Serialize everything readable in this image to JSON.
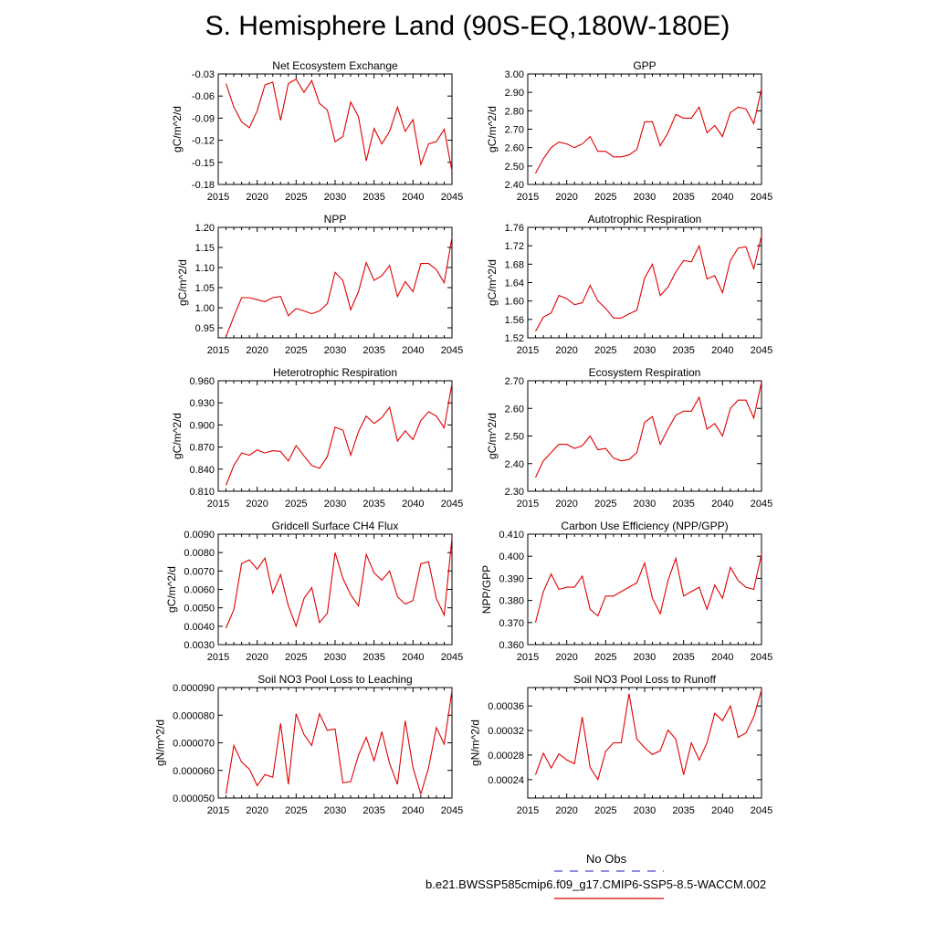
{
  "figure_title": "S. Hemisphere Land (90S-EQ,180W-180E)",
  "legend": {
    "obs_label": "No Obs",
    "obs_color": "#4a4ad0",
    "model_label": "b.e21.BWSSP585cmip6.f09_g17.CMIP6-SSP5-8.5-WACCM.002",
    "model_color": "#e00000"
  },
  "line_color": "#e00000",
  "chart_data": [
    {
      "type": "line",
      "title": "Net Ecosystem Exchange",
      "ylabel": "gC/m^2/d",
      "xlim": [
        2015,
        2045
      ],
      "ylim": [
        -0.18,
        -0.03
      ],
      "xticks": [
        "2015",
        "2020",
        "2025",
        "2030",
        "2035",
        "2040",
        "2045"
      ],
      "yticks": [
        "-0.18",
        "-0.15",
        "-0.12",
        "-0.09",
        "-0.06",
        "-0.03"
      ],
      "x": [
        2016,
        2017,
        2018,
        2019,
        2020,
        2021,
        2022,
        2023,
        2024,
        2025,
        2026,
        2027,
        2028,
        2029,
        2030,
        2031,
        2032,
        2033,
        2034,
        2035,
        2036,
        2037,
        2038,
        2039,
        2040,
        2041,
        2042,
        2043,
        2044,
        2045
      ],
      "values": [
        -0.043,
        -0.075,
        -0.095,
        -0.103,
        -0.08,
        -0.045,
        -0.041,
        -0.093,
        -0.043,
        -0.037,
        -0.055,
        -0.039,
        -0.07,
        -0.079,
        -0.122,
        -0.115,
        -0.068,
        -0.088,
        -0.148,
        -0.104,
        -0.125,
        -0.108,
        -0.075,
        -0.108,
        -0.092,
        -0.153,
        -0.125,
        -0.122,
        -0.105,
        -0.162
      ]
    },
    {
      "type": "line",
      "title": "GPP",
      "ylabel": "gC/m^2/d",
      "xlim": [
        2015,
        2045
      ],
      "ylim": [
        2.4,
        3.0
      ],
      "xticks": [
        "2015",
        "2020",
        "2025",
        "2030",
        "2035",
        "2040",
        "2045"
      ],
      "yticks": [
        "2.40",
        "2.50",
        "2.60",
        "2.70",
        "2.80",
        "2.90",
        "3.00"
      ],
      "x": [
        2016,
        2017,
        2018,
        2019,
        2020,
        2021,
        2022,
        2023,
        2024,
        2025,
        2026,
        2027,
        2028,
        2029,
        2030,
        2031,
        2032,
        2033,
        2034,
        2035,
        2036,
        2037,
        2038,
        2039,
        2040,
        2041,
        2042,
        2043,
        2044,
        2045
      ],
      "values": [
        2.46,
        2.54,
        2.6,
        2.63,
        2.62,
        2.6,
        2.62,
        2.66,
        2.58,
        2.58,
        2.55,
        2.55,
        2.56,
        2.59,
        2.74,
        2.74,
        2.61,
        2.68,
        2.78,
        2.76,
        2.76,
        2.82,
        2.68,
        2.72,
        2.66,
        2.79,
        2.82,
        2.81,
        2.73,
        2.92
      ]
    },
    {
      "type": "line",
      "title": "NPP",
      "ylabel": "gC/m^2/d",
      "xlim": [
        2015,
        2045
      ],
      "ylim": [
        0.925,
        1.2
      ],
      "xticks": [
        "2015",
        "2020",
        "2025",
        "2030",
        "2035",
        "2040",
        "2045"
      ],
      "yticks": [
        "0.95",
        "1.00",
        "1.05",
        "1.10",
        "1.15",
        "1.20"
      ],
      "x": [
        2016,
        2017,
        2018,
        2019,
        2020,
        2021,
        2022,
        2023,
        2024,
        2025,
        2026,
        2027,
        2028,
        2029,
        2030,
        2031,
        2032,
        2033,
        2034,
        2035,
        2036,
        2037,
        2038,
        2039,
        2040,
        2041,
        2042,
        2043,
        2044,
        2045
      ],
      "values": [
        0.928,
        0.978,
        1.025,
        1.025,
        1.02,
        1.015,
        1.025,
        1.028,
        0.98,
        0.998,
        0.992,
        0.985,
        0.992,
        1.01,
        1.088,
        1.068,
        0.995,
        1.04,
        1.112,
        1.068,
        1.08,
        1.105,
        1.028,
        1.065,
        1.04,
        1.11,
        1.11,
        1.095,
        1.062,
        1.175
      ]
    },
    {
      "type": "line",
      "title": "Autotrophic Respiration",
      "ylabel": "gC/m^2/d",
      "xlim": [
        2015,
        2045
      ],
      "ylim": [
        1.52,
        1.76
      ],
      "xticks": [
        "2015",
        "2020",
        "2025",
        "2030",
        "2035",
        "2040",
        "2045"
      ],
      "yticks": [
        "1.52",
        "1.56",
        "1.60",
        "1.64",
        "1.68",
        "1.72",
        "1.76"
      ],
      "x": [
        2016,
        2017,
        2018,
        2019,
        2020,
        2021,
        2022,
        2023,
        2024,
        2025,
        2026,
        2027,
        2028,
        2029,
        2030,
        2031,
        2032,
        2033,
        2034,
        2035,
        2036,
        2037,
        2038,
        2039,
        2040,
        2041,
        2042,
        2043,
        2044,
        2045
      ],
      "values": [
        1.534,
        1.565,
        1.574,
        1.612,
        1.605,
        1.592,
        1.596,
        1.634,
        1.6,
        1.584,
        1.563,
        1.563,
        1.572,
        1.58,
        1.65,
        1.68,
        1.612,
        1.63,
        1.663,
        1.688,
        1.685,
        1.72,
        1.648,
        1.655,
        1.618,
        1.688,
        1.715,
        1.718,
        1.67,
        1.742
      ]
    },
    {
      "type": "line",
      "title": "Heterotrophic Respiration",
      "ylabel": "gC/m^2/d",
      "xlim": [
        2015,
        2045
      ],
      "ylim": [
        0.81,
        0.96
      ],
      "xticks": [
        "2015",
        "2020",
        "2025",
        "2030",
        "2035",
        "2040",
        "2045"
      ],
      "yticks": [
        "0.810",
        "0.840",
        "0.870",
        "0.900",
        "0.930",
        "0.960"
      ],
      "x": [
        2016,
        2017,
        2018,
        2019,
        2020,
        2021,
        2022,
        2023,
        2024,
        2025,
        2026,
        2027,
        2028,
        2029,
        2030,
        2031,
        2032,
        2033,
        2034,
        2035,
        2036,
        2037,
        2038,
        2039,
        2040,
        2041,
        2042,
        2043,
        2044,
        2045
      ],
      "values": [
        0.818,
        0.845,
        0.862,
        0.859,
        0.866,
        0.862,
        0.865,
        0.864,
        0.851,
        0.872,
        0.858,
        0.845,
        0.841,
        0.857,
        0.897,
        0.893,
        0.859,
        0.891,
        0.912,
        0.902,
        0.91,
        0.924,
        0.878,
        0.892,
        0.88,
        0.906,
        0.918,
        0.912,
        0.896,
        0.956
      ]
    },
    {
      "type": "line",
      "title": "Ecosystem Respiration",
      "ylabel": "gC/m^2/d",
      "xlim": [
        2015,
        2045
      ],
      "ylim": [
        2.3,
        2.7
      ],
      "xticks": [
        "2015",
        "2020",
        "2025",
        "2030",
        "2035",
        "2040",
        "2045"
      ],
      "yticks": [
        "2.30",
        "2.40",
        "2.50",
        "2.60",
        "2.70"
      ],
      "x": [
        2016,
        2017,
        2018,
        2019,
        2020,
        2021,
        2022,
        2023,
        2024,
        2025,
        2026,
        2027,
        2028,
        2029,
        2030,
        2031,
        2032,
        2033,
        2034,
        2035,
        2036,
        2037,
        2038,
        2039,
        2040,
        2041,
        2042,
        2043,
        2044,
        2045
      ],
      "values": [
        2.35,
        2.41,
        2.44,
        2.47,
        2.47,
        2.455,
        2.465,
        2.5,
        2.45,
        2.455,
        2.42,
        2.41,
        2.415,
        2.44,
        2.55,
        2.57,
        2.47,
        2.525,
        2.575,
        2.59,
        2.59,
        2.64,
        2.525,
        2.545,
        2.5,
        2.6,
        2.63,
        2.63,
        2.565,
        2.695
      ]
    },
    {
      "type": "line",
      "title": "Gridcell Surface CH4 Flux",
      "ylabel": "gC/m^2/d",
      "xlim": [
        2015,
        2045
      ],
      "ylim": [
        0.003,
        0.009
      ],
      "xticks": [
        "2015",
        "2020",
        "2025",
        "2030",
        "2035",
        "2040",
        "2045"
      ],
      "yticks": [
        "0.0030",
        "0.0040",
        "0.0050",
        "0.0060",
        "0.0070",
        "0.0080",
        "0.0090"
      ],
      "x": [
        2016,
        2017,
        2018,
        2019,
        2020,
        2021,
        2022,
        2023,
        2024,
        2025,
        2026,
        2027,
        2028,
        2029,
        2030,
        2031,
        2032,
        2033,
        2034,
        2035,
        2036,
        2037,
        2038,
        2039,
        2040,
        2041,
        2042,
        2043,
        2044,
        2045
      ],
      "values": [
        0.0039,
        0.0049,
        0.0074,
        0.0076,
        0.0071,
        0.0077,
        0.0058,
        0.0068,
        0.0051,
        0.004,
        0.0055,
        0.0061,
        0.0042,
        0.0047,
        0.008,
        0.0066,
        0.0057,
        0.0051,
        0.0079,
        0.0069,
        0.0065,
        0.007,
        0.0056,
        0.0052,
        0.0054,
        0.0074,
        0.0075,
        0.0055,
        0.0046,
        0.0088
      ]
    },
    {
      "type": "line",
      "title": "Carbon Use Efficiency (NPP/GPP)",
      "ylabel": "NPP/GPP",
      "xlim": [
        2015,
        2045
      ],
      "ylim": [
        0.36,
        0.41
      ],
      "xticks": [
        "2015",
        "2020",
        "2025",
        "2030",
        "2035",
        "2040",
        "2045"
      ],
      "yticks": [
        "0.360",
        "0.370",
        "0.380",
        "0.390",
        "0.400",
        "0.410"
      ],
      "x": [
        2016,
        2017,
        2018,
        2019,
        2020,
        2021,
        2022,
        2023,
        2024,
        2025,
        2026,
        2027,
        2028,
        2029,
        2030,
        2031,
        2032,
        2033,
        2034,
        2035,
        2036,
        2037,
        2038,
        2039,
        2040,
        2041,
        2042,
        2043,
        2044,
        2045
      ],
      "values": [
        0.37,
        0.384,
        0.392,
        0.385,
        0.386,
        0.386,
        0.391,
        0.376,
        0.373,
        0.382,
        0.382,
        0.384,
        0.386,
        0.388,
        0.397,
        0.381,
        0.374,
        0.389,
        0.399,
        0.382,
        0.384,
        0.386,
        0.376,
        0.387,
        0.381,
        0.395,
        0.389,
        0.386,
        0.385,
        0.401
      ]
    },
    {
      "type": "line",
      "title": "Soil NO3 Pool Loss to Leaching",
      "ylabel": "gN/m^2/d",
      "xlim": [
        2015,
        2045
      ],
      "ylim": [
        5e-05,
        9e-05
      ],
      "xticks": [
        "2015",
        "2020",
        "2025",
        "2030",
        "2035",
        "2040",
        "2045"
      ],
      "yticks": [
        "0.000050",
        "0.000060",
        "0.000070",
        "0.000080",
        "0.000090"
      ],
      "x": [
        2016,
        2017,
        2018,
        2019,
        2020,
        2021,
        2022,
        2023,
        2024,
        2025,
        2026,
        2027,
        2028,
        2029,
        2030,
        2031,
        2032,
        2033,
        2034,
        2035,
        2036,
        2037,
        2038,
        2039,
        2040,
        2041,
        2042,
        2043,
        2044,
        2045
      ],
      "values": [
        5.15e-05,
        6.9e-05,
        6.3e-05,
        6.05e-05,
        5.45e-05,
        5.85e-05,
        5.75e-05,
        7.7e-05,
        5.5e-05,
        8.05e-05,
        7.3e-05,
        6.9e-05,
        8.05e-05,
        7.45e-05,
        7.5e-05,
        5.55e-05,
        5.6e-05,
        6.55e-05,
        7.2e-05,
        6.35e-05,
        7.4e-05,
        6.25e-05,
        5.5e-05,
        7.8e-05,
        6.1e-05,
        5.15e-05,
        6.1e-05,
        7.55e-05,
        6.95e-05,
        8.9e-05
      ]
    },
    {
      "type": "line",
      "title": "Soil NO3 Pool Loss to Runoff",
      "ylabel": "gN/m^2/d",
      "xlim": [
        2015,
        2045
      ],
      "ylim": [
        0.00021,
        0.00039
      ],
      "xticks": [
        "2015",
        "2020",
        "2025",
        "2030",
        "2035",
        "2040",
        "2045"
      ],
      "yticks": [
        "0.00024",
        "0.00028",
        "0.00032",
        "0.00036"
      ],
      "x": [
        2016,
        2017,
        2018,
        2019,
        2020,
        2021,
        2022,
        2023,
        2024,
        2025,
        2026,
        2027,
        2028,
        2029,
        2030,
        2031,
        2032,
        2033,
        2034,
        2035,
        2036,
        2037,
        2038,
        2039,
        2040,
        2041,
        2042,
        2043,
        2044,
        2045
      ],
      "values": [
        0.000248,
        0.000283,
        0.000259,
        0.000282,
        0.000272,
        0.000266,
        0.000342,
        0.00026,
        0.00024,
        0.000286,
        0.0003,
        0.0003,
        0.00038,
        0.000306,
        0.000292,
        0.000281,
        0.000287,
        0.000321,
        0.000306,
        0.000248,
        0.0003,
        0.000272,
        0.0003,
        0.000348,
        0.000336,
        0.00036,
        0.000309,
        0.000316,
        0.000342,
        0.000386
      ]
    }
  ]
}
